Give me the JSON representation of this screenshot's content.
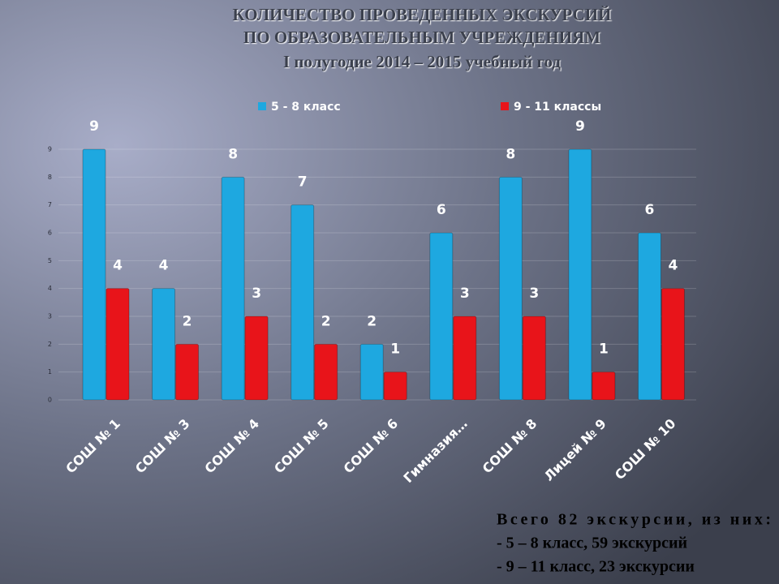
{
  "chart_data": {
    "type": "bar",
    "title": [
      "КОЛИЧЕСТВО ПРОВЕДЕННЫХ ЭКСКУРСИЙ",
      "ПО ОБРАЗОВАТЕЛЬНЫМ УЧРЕЖДЕНИЯМ",
      "I полугодие 2014 – 2015 учебный год"
    ],
    "categories": [
      "СОШ № 1",
      "СОШ № 3",
      "СОШ № 4",
      "СОШ № 5",
      "СОШ № 6",
      "Гимназия…",
      "СОШ № 8",
      "Лицей № 9",
      "СОШ № 10"
    ],
    "series": [
      {
        "name": "5 - 8 класс",
        "color": "#1ea8e0",
        "values": [
          9,
          4,
          8,
          7,
          2,
          6,
          8,
          9,
          6
        ]
      },
      {
        "name": "9 - 11 классы",
        "color": "#e8141a",
        "values": [
          4,
          2,
          3,
          2,
          1,
          3,
          3,
          1,
          4
        ]
      }
    ],
    "ylim": [
      0,
      9
    ],
    "yticks": [
      0,
      1,
      2,
      3,
      4,
      5,
      6,
      7,
      8,
      9
    ],
    "grid": true,
    "legend": "top",
    "notes": [
      "Всего 82 экскурсии, из них:",
      "- 5 – 8 класс, 59 экскурсий",
      "- 9 – 11 класс, 23 экскурсии"
    ]
  }
}
